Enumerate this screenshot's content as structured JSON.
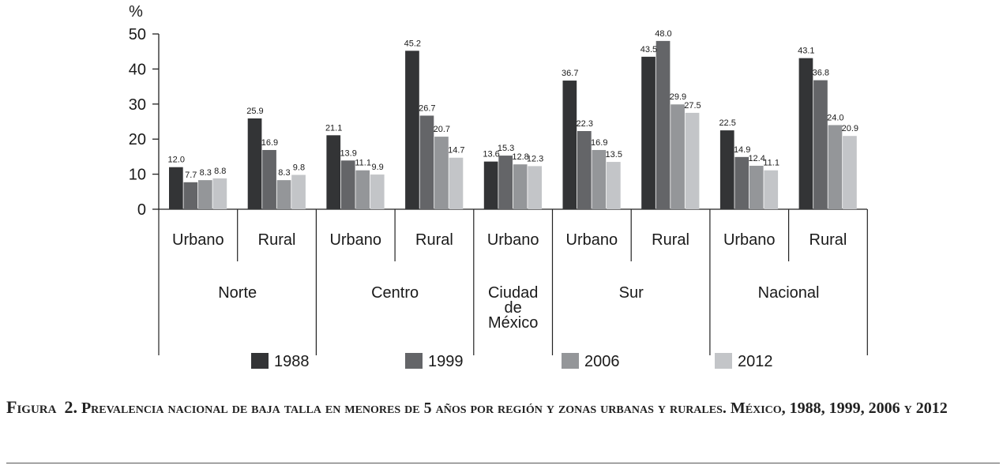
{
  "chart_data": {
    "type": "bar",
    "ylabel": "%",
    "ylim": [
      0,
      50
    ],
    "yticks": [
      "0",
      "10",
      "20",
      "30",
      "40",
      "50"
    ],
    "series": [
      {
        "name": "1988",
        "color": "#333436"
      },
      {
        "name": "1999",
        "color": "#646568"
      },
      {
        "name": "2006",
        "color": "#949699"
      },
      {
        "name": "2012",
        "color": "#c3c5c8"
      }
    ],
    "groups": [
      {
        "region": "Norte",
        "zone": "Urbano",
        "values": [
          12.0,
          7.7,
          8.3,
          8.8
        ],
        "labels": [
          "12.0",
          "7.7",
          "8.3",
          "8.8"
        ]
      },
      {
        "region": "Norte",
        "zone": "Rural",
        "values": [
          25.9,
          16.9,
          8.3,
          9.8
        ],
        "labels": [
          "25.9",
          "16.9",
          "8.3",
          "9.8"
        ]
      },
      {
        "region": "Centro",
        "zone": "Urbano",
        "values": [
          21.1,
          13.9,
          11.1,
          9.9
        ],
        "labels": [
          "21.1",
          "13.9",
          "11.1",
          "9.9"
        ]
      },
      {
        "region": "Centro",
        "zone": "Rural",
        "values": [
          45.2,
          26.7,
          20.7,
          14.7
        ],
        "labels": [
          "45.2",
          "26.7",
          "20.7",
          "14.7"
        ]
      },
      {
        "region": "Ciudad de México",
        "zone": "Urbano",
        "values": [
          13.6,
          15.3,
          12.8,
          12.3
        ],
        "labels": [
          "13.6",
          "15.3",
          "12.8",
          "12.3"
        ]
      },
      {
        "region": "Sur",
        "zone": "Urbano",
        "values": [
          36.7,
          22.3,
          16.9,
          13.5
        ],
        "labels": [
          "36.7",
          "22.3",
          "16.9",
          "13.5"
        ]
      },
      {
        "region": "Sur",
        "zone": "Rural",
        "values": [
          43.5,
          48.0,
          29.9,
          27.5
        ],
        "labels": [
          "43.5",
          "48.0",
          "29.9",
          "27.5"
        ]
      },
      {
        "region": "Nacional",
        "zone": "Urbano",
        "values": [
          22.5,
          14.9,
          12.4,
          11.1
        ],
        "labels": [
          "22.5",
          "14.9",
          "12.4",
          "11.1"
        ]
      },
      {
        "region": "Nacional",
        "zone": "Rural",
        "values": [
          43.1,
          36.8,
          24.0,
          20.9
        ],
        "labels": [
          "43.1",
          "36.8",
          "24.0",
          "20.9"
        ]
      }
    ],
    "regions": [
      {
        "name": "Norte",
        "lines": [
          "Norte"
        ],
        "span": [
          0,
          1
        ]
      },
      {
        "name": "Centro",
        "lines": [
          "Centro"
        ],
        "span": [
          2,
          3
        ]
      },
      {
        "name": "Ciudad de México",
        "lines": [
          "Ciudad",
          "de",
          "México"
        ],
        "span": [
          4,
          4
        ]
      },
      {
        "name": "Sur",
        "lines": [
          "Sur"
        ],
        "span": [
          5,
          6
        ]
      },
      {
        "name": "Nacional",
        "lines": [
          "Nacional"
        ],
        "span": [
          7,
          8
        ]
      }
    ]
  },
  "caption": {
    "prefix": "Figura",
    "number": "2.",
    "text": "Prevalencia nacional de baja talla en  menores de 5 años por región y zonas urbanas y rurales. México, 1988, 1999, 2006 y 2012"
  }
}
